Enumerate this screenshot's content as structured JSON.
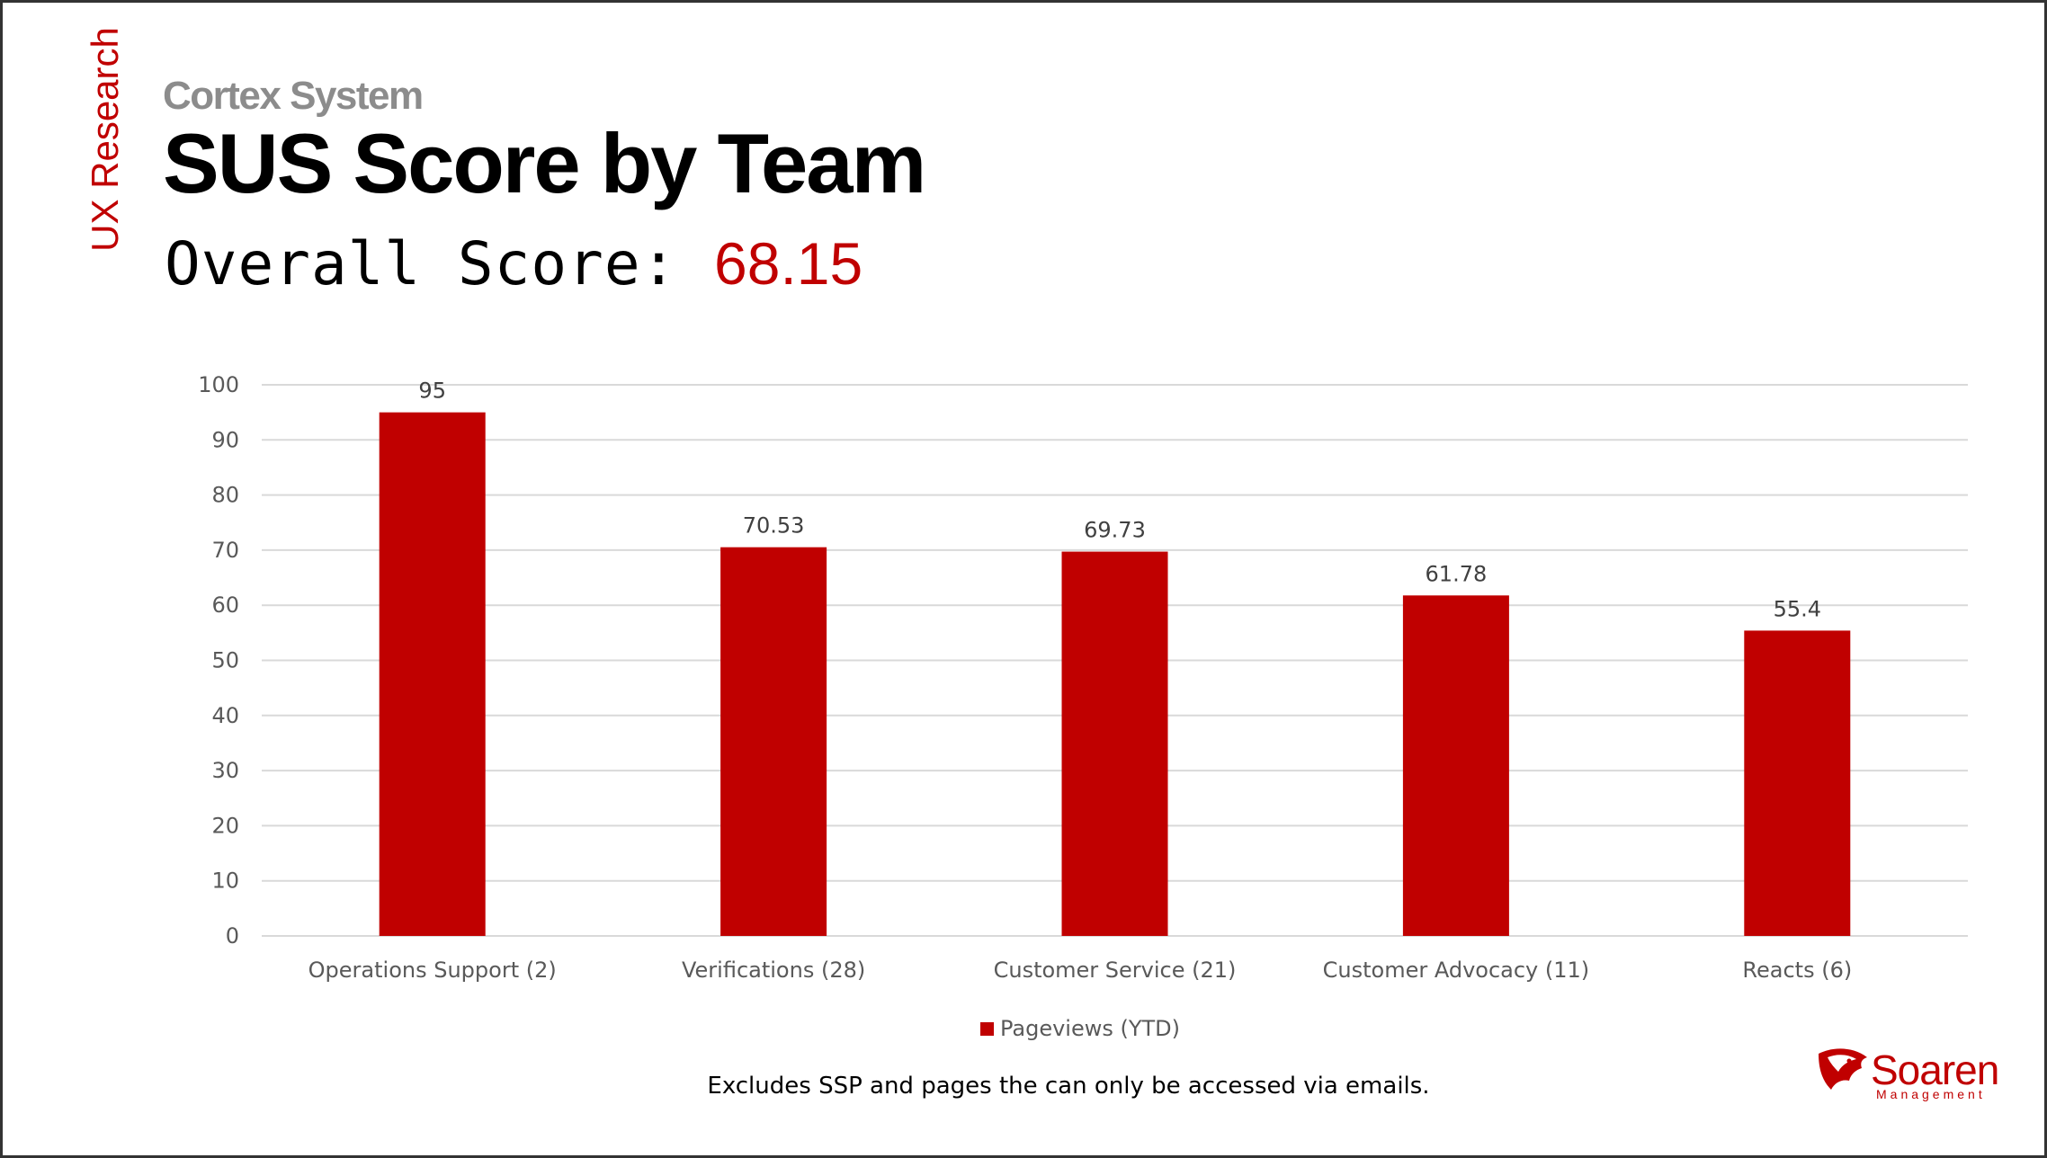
{
  "slide": {
    "side_label": "UX Research",
    "supertitle": "Cortex System",
    "title": "SUS Score by Team",
    "overall_label": "Overall Score: ",
    "overall_value": "68.15",
    "footnote": "Excludes SSP and pages the can only be accessed via emails.",
    "logo_name": "Soaren",
    "logo_sub": "Management"
  },
  "colors": {
    "accent": "#c00000",
    "gridline": "#d9d9d9",
    "axis_text": "#595959",
    "supertitle": "#8c8c8c"
  },
  "chart_data": {
    "type": "bar",
    "categories": [
      "Operations Support (2)",
      "Verifications (28)",
      "Customer Service (21)",
      "Customer Advocacy (11)",
      "Reacts (6)"
    ],
    "series": [
      {
        "name": "Pageviews (YTD)",
        "values": [
          95,
          70.53,
          69.73,
          61.78,
          55.4
        ],
        "labels": [
          "95",
          "70.53",
          "69.73",
          "61.78",
          "55.4"
        ]
      }
    ],
    "ylim": [
      0,
      100
    ],
    "yticks": [
      0,
      10,
      20,
      30,
      40,
      50,
      60,
      70,
      80,
      90,
      100
    ],
    "grid": true,
    "legend": "bottom",
    "xlabel": "",
    "ylabel": ""
  }
}
